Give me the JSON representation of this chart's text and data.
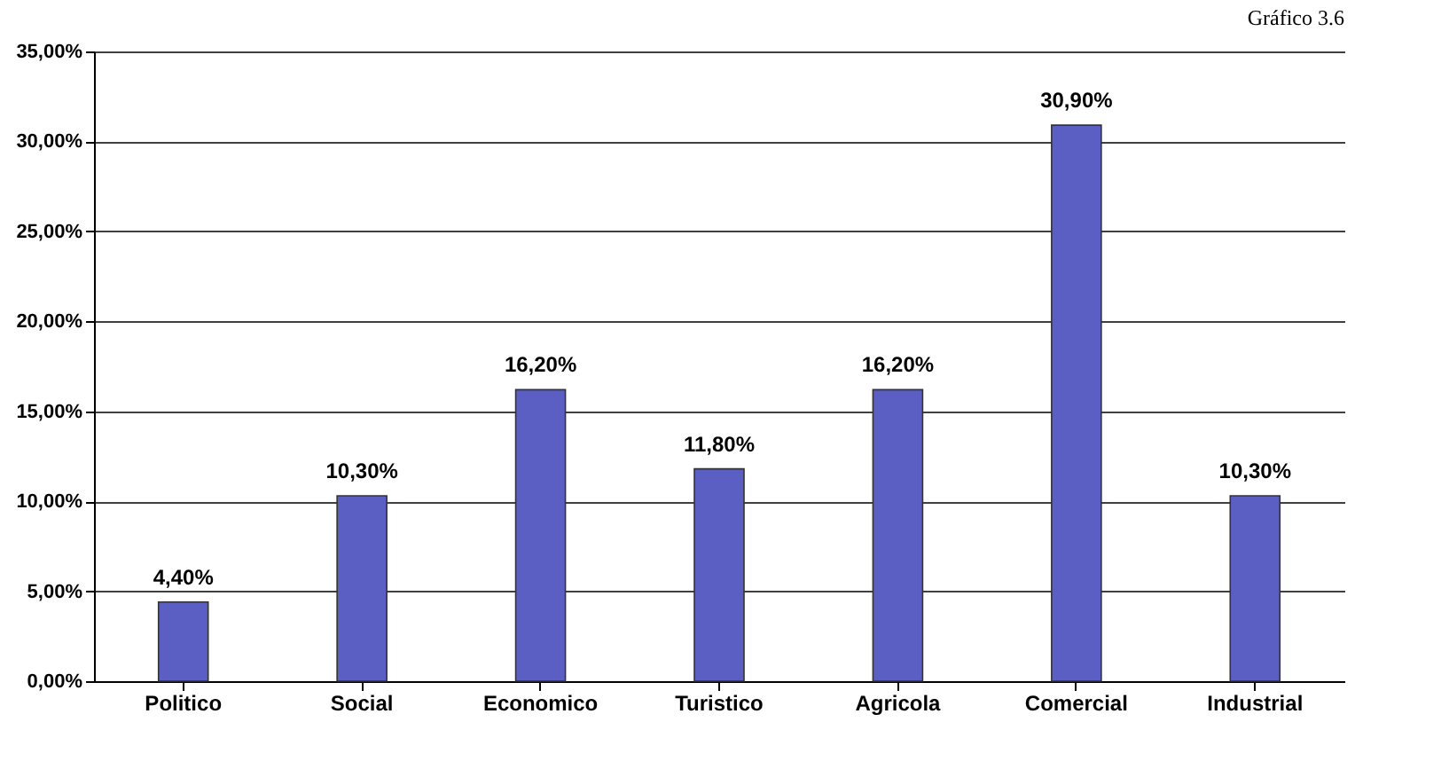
{
  "chart_data": {
    "type": "bar",
    "title": "Gráfico 3.6",
    "categories": [
      "Politico",
      "Social",
      "Economico",
      "Turistico",
      "Agricola",
      "Comercial",
      "Industrial"
    ],
    "values": [
      4.4,
      10.3,
      16.2,
      11.8,
      16.2,
      30.9,
      10.3
    ],
    "color": "#5b5fc4",
    "value_labels": [
      "4,40%",
      "10,30%",
      "16,20%",
      "11,80%",
      "16,20%",
      "30,90%",
      "10,30%"
    ],
    "ylim": [
      0,
      35
    ],
    "yticks": [
      {
        "value": 0,
        "label": "0,00%"
      },
      {
        "value": 5,
        "label": "5,00%"
      },
      {
        "value": 10,
        "label": "10,00%"
      },
      {
        "value": 15,
        "label": "15,00%"
      },
      {
        "value": 20,
        "label": "20,00%"
      },
      {
        "value": 25,
        "label": "25,00%"
      },
      {
        "value": 30,
        "label": "30,00%"
      },
      {
        "value": 35,
        "label": "35,00%"
      }
    ],
    "grid": "y"
  }
}
